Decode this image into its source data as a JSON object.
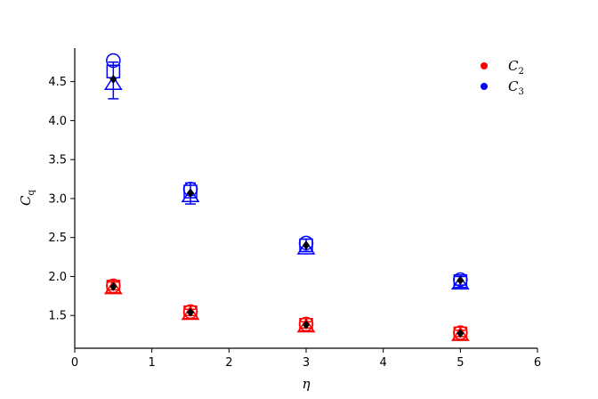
{
  "chart_data": {
    "type": "scatter",
    "title": "",
    "xlabel": "η",
    "ylabel_main": "C",
    "ylabel_sub": "q",
    "xlim": [
      0,
      6
    ],
    "ylim": [
      1.08,
      4.93
    ],
    "xticks": [
      0,
      1,
      2,
      3,
      4,
      5,
      6
    ],
    "xtick_labels": [
      "0",
      "1",
      "2",
      "3",
      "4",
      "5",
      "6"
    ],
    "yticks": [
      1.5,
      2.0,
      2.5,
      3.0,
      3.5,
      4.0,
      4.5
    ],
    "ytick_labels": [
      "1.5",
      "2.0",
      "2.5",
      "3.0",
      "3.5",
      "4.0",
      "4.5"
    ],
    "grid": false,
    "legend_position": "top-right",
    "series": [
      {
        "name_main": "C",
        "name_sub": "2",
        "color": "#ff0000",
        "x": [
          0.5,
          1.5,
          3.0,
          5.0
        ],
        "circle": [
          1.88,
          1.55,
          1.39,
          1.28
        ],
        "square": [
          1.87,
          1.54,
          1.38,
          1.27
        ],
        "triangle": [
          1.85,
          1.52,
          1.36,
          1.25
        ],
        "mean": [
          1.87,
          1.54,
          1.38,
          1.27
        ],
        "err_low": [
          1.83,
          1.5,
          1.34,
          1.23
        ],
        "err_high": [
          1.93,
          1.58,
          1.42,
          1.31
        ]
      },
      {
        "name_main": "C",
        "name_sub": "3",
        "color": "#0000ff",
        "x": [
          0.5,
          1.5,
          3.0,
          5.0
        ],
        "circle": [
          4.77,
          3.12,
          2.43,
          1.96
        ],
        "square": [
          4.63,
          3.09,
          2.4,
          1.94
        ],
        "triangle": [
          4.47,
          3.03,
          2.36,
          1.91
        ],
        "mean": [
          4.53,
          3.07,
          2.4,
          1.95
        ],
        "err_low": [
          4.28,
          2.93,
          2.32,
          1.89
        ],
        "err_high": [
          4.75,
          3.2,
          2.48,
          2.0
        ]
      }
    ]
  }
}
